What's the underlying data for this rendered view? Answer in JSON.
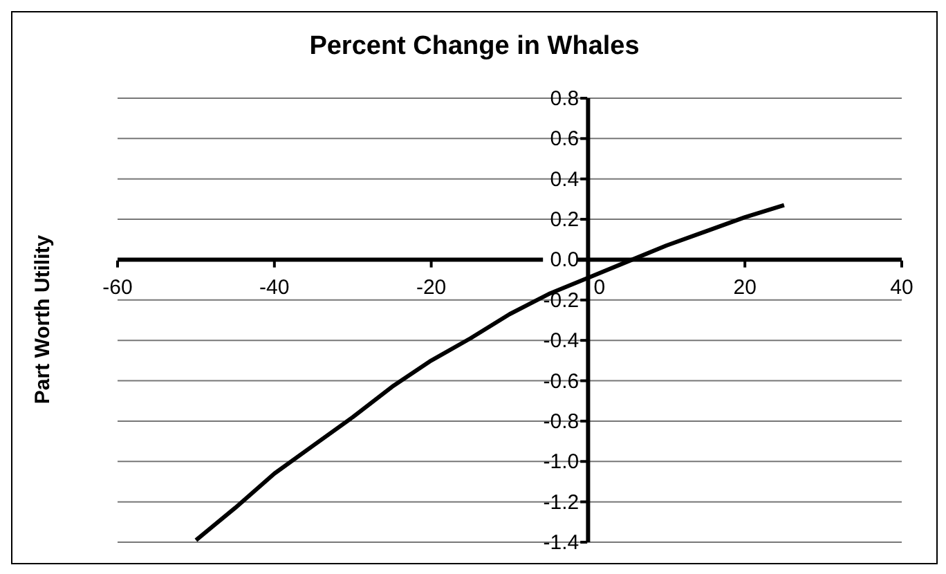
{
  "chart_data": {
    "type": "line",
    "title": "Percent Change in Whales",
    "ylabel": "Part Worth Utility",
    "x": [
      -50,
      -45,
      -40,
      -35,
      -30,
      -25,
      -20,
      -15,
      -10,
      -5,
      0,
      5,
      10,
      15,
      20,
      25
    ],
    "series": [
      {
        "color": "#000000",
        "values": [
          -1.39,
          -1.23,
          -1.06,
          -0.92,
          -0.78,
          -0.63,
          -0.5,
          -0.39,
          -0.27,
          -0.17,
          -0.09,
          -0.01,
          0.07,
          0.14,
          0.21,
          0.27
        ]
      }
    ],
    "xlim": [
      -60,
      40
    ],
    "xticks": [
      -60,
      -40,
      -20,
      0,
      20,
      40
    ],
    "ylim": [
      -1.4,
      0.8
    ],
    "yticks": [
      {
        "value": 0.8,
        "label": "0.8"
      },
      {
        "value": 0.6,
        "label": "0.6"
      },
      {
        "value": 0.4,
        "label": "0.4"
      },
      {
        "value": 0.2,
        "label": "0.2"
      },
      {
        "value": 0,
        "label": "0.0"
      },
      {
        "value": -0.2,
        "label": "-0.2"
      },
      {
        "value": -0.4,
        "label": "-0.4"
      },
      {
        "value": -0.6,
        "label": "-0.6"
      },
      {
        "value": -0.8,
        "label": "-0.8"
      },
      {
        "value": -1,
        "label": "-1.0"
      },
      {
        "value": -1.2,
        "label": "-1.2"
      },
      {
        "value": -1.4,
        "label": "-1.4"
      }
    ],
    "grid": "y",
    "legend": false,
    "marker": "none",
    "line_style": "solid"
  }
}
